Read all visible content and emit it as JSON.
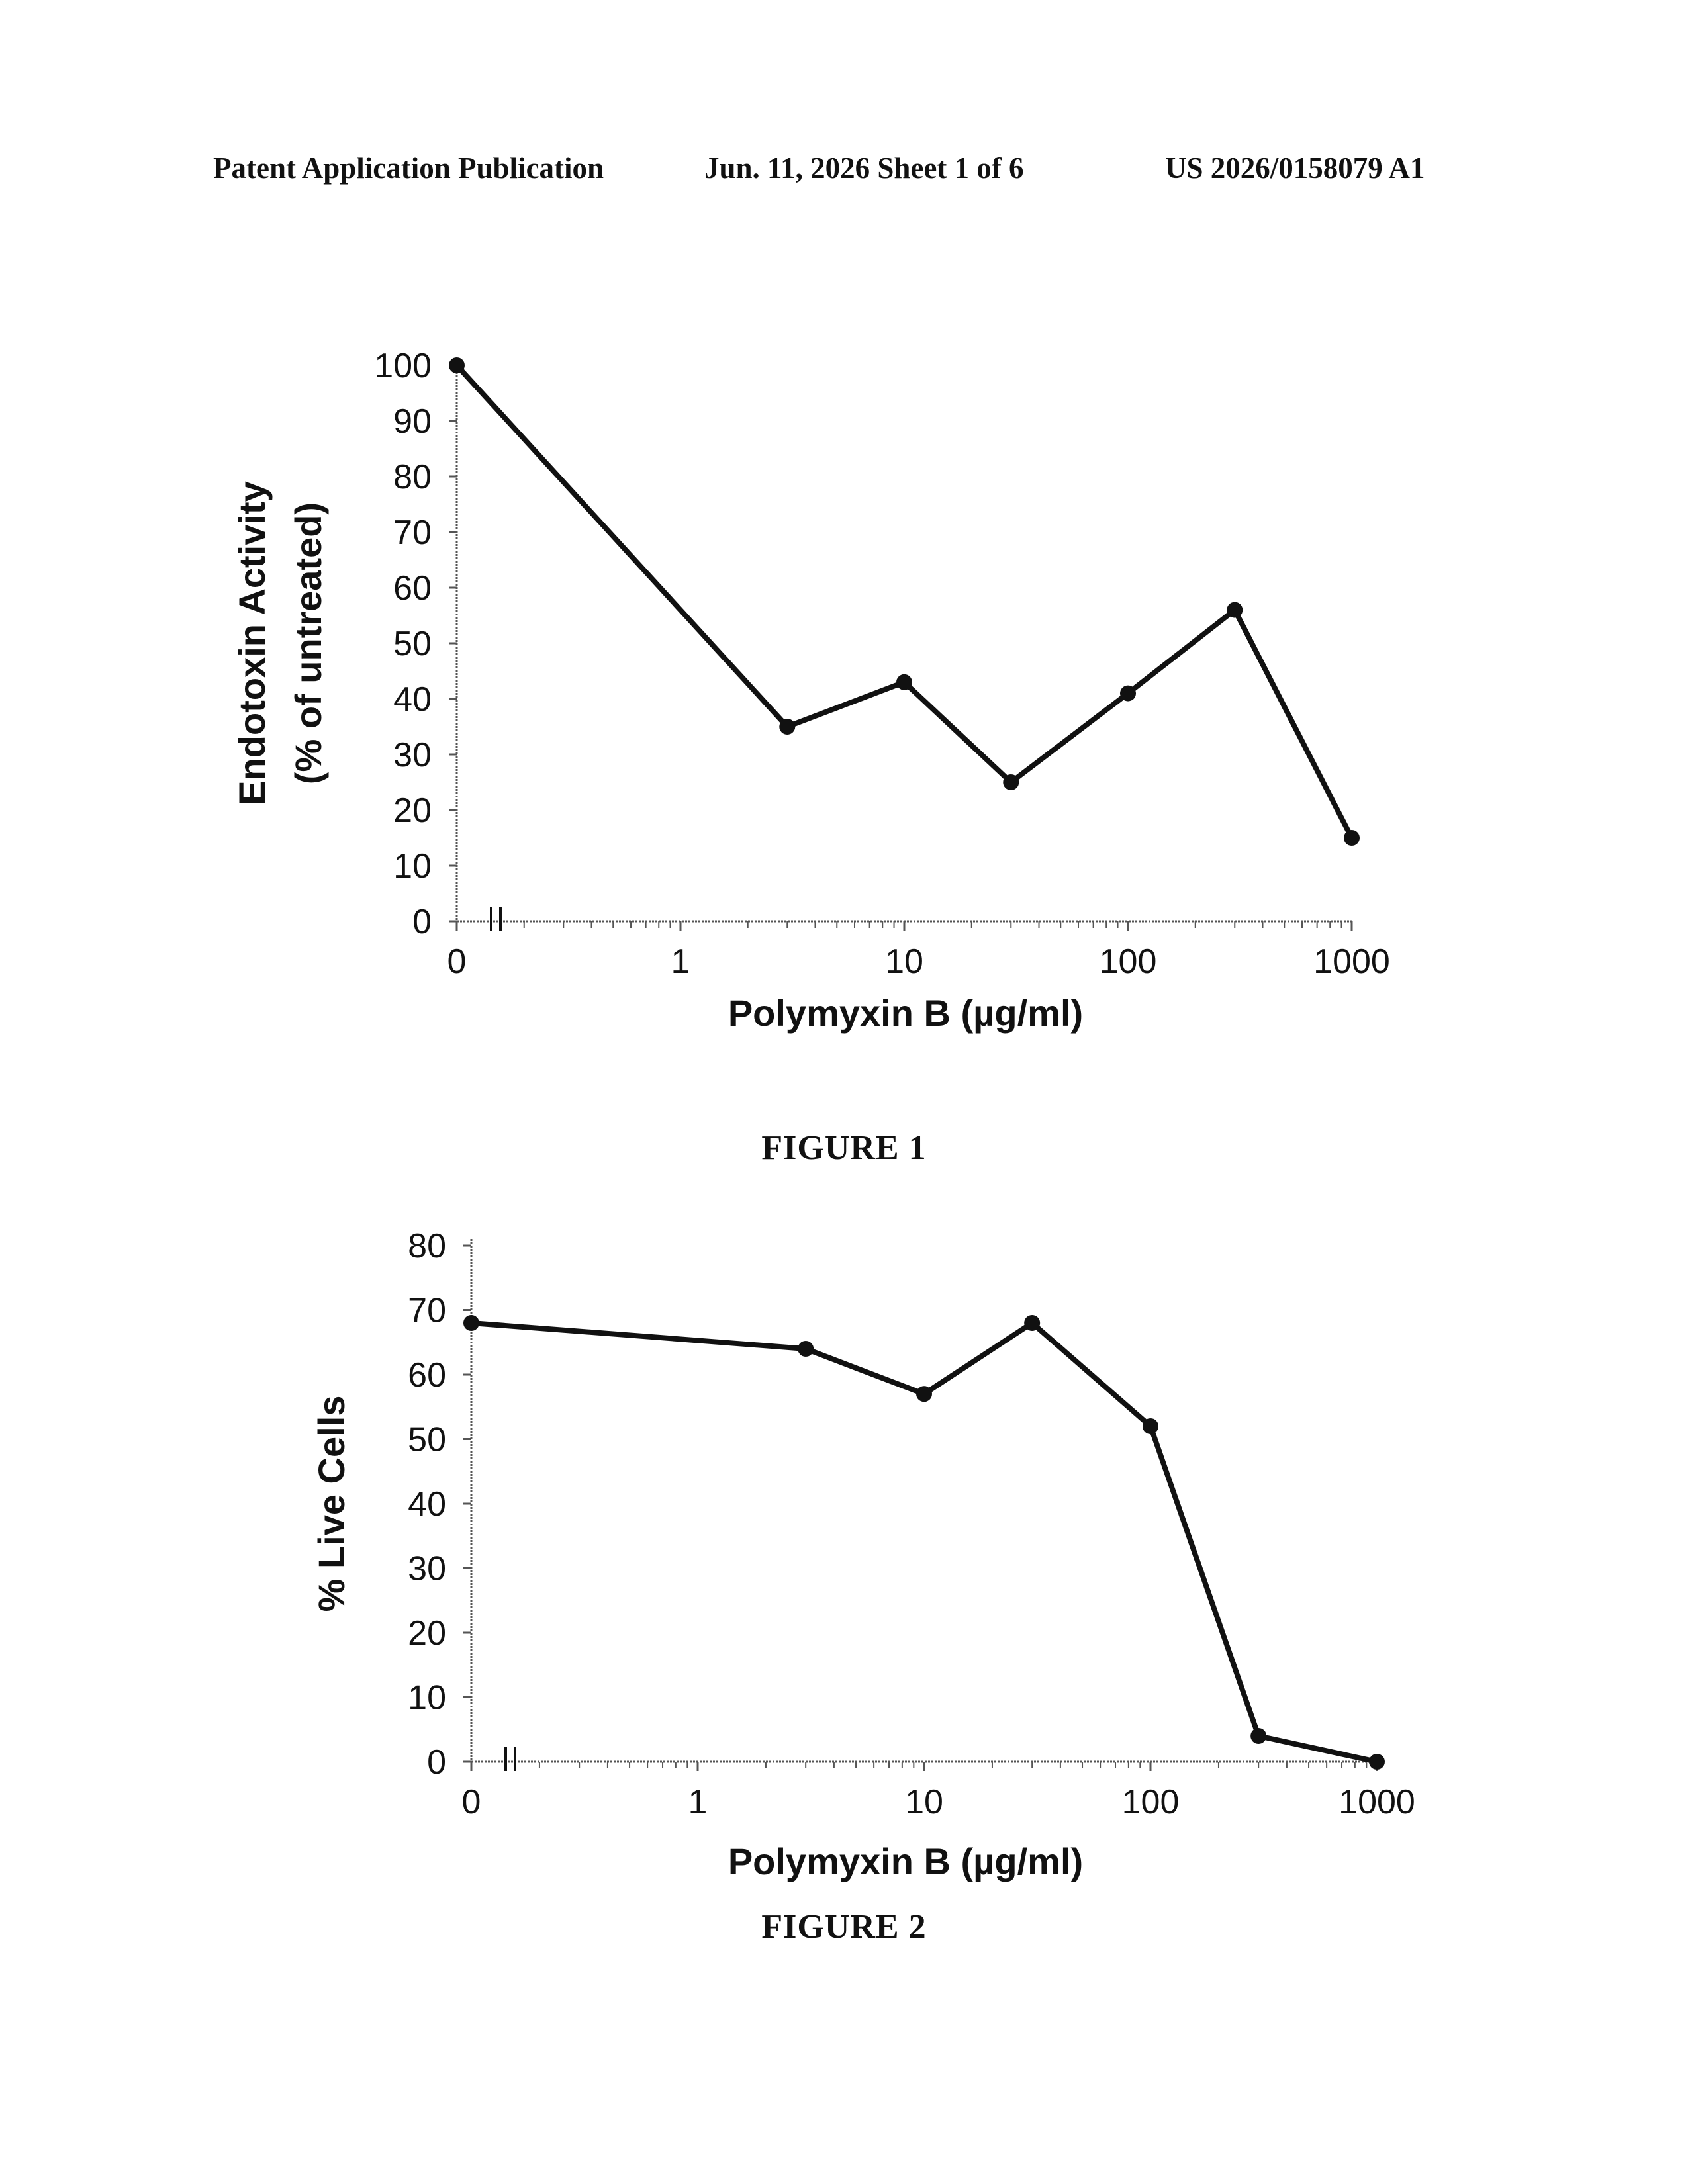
{
  "header": {
    "left": "Patent Application Publication",
    "middle": "Jun. 11, 2026  Sheet 1 of 6",
    "right": "US 2026/0158079 A1"
  },
  "captions": [
    "FIGURE 1",
    "FIGURE 2"
  ],
  "chart_data": [
    {
      "type": "line",
      "title": "",
      "xlabel": "Polymyxin B (µg/ml)",
      "ylabel_lines": [
        "Endotoxin Activity",
        "(% of untreated)"
      ],
      "x_scale": "log with axis break; 0 plotted at left edge",
      "x_tick_labels": [
        "0",
        "1",
        "10",
        "100",
        "1000"
      ],
      "y_ticks": [
        0,
        10,
        20,
        30,
        40,
        50,
        60,
        70,
        80,
        90,
        100
      ],
      "ylim": [
        0,
        100
      ],
      "grid": false,
      "series": [
        {
          "x": [
            0,
            3,
            10,
            30,
            100,
            300,
            1000
          ],
          "y": [
            100,
            35,
            43,
            25,
            41,
            56,
            15
          ]
        }
      ]
    },
    {
      "type": "line",
      "title": "",
      "xlabel": "Polymyxin B (µg/ml)",
      "ylabel_lines": [
        "% Live Cells"
      ],
      "x_scale": "log with axis break; 0 plotted at left edge",
      "x_tick_labels": [
        "0",
        "1",
        "10",
        "100",
        "1000"
      ],
      "y_ticks": [
        0,
        10,
        20,
        30,
        40,
        50,
        60,
        70,
        80
      ],
      "ylim": [
        0,
        80
      ],
      "grid": false,
      "series": [
        {
          "x": [
            0,
            3,
            10,
            30,
            100,
            300,
            1000
          ],
          "y": [
            68,
            64,
            57,
            68,
            52,
            4,
            0
          ]
        }
      ]
    }
  ]
}
